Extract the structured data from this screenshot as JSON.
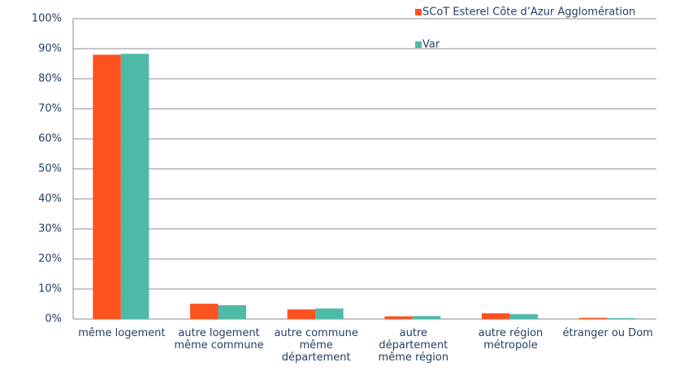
{
  "chart_data": {
    "type": "bar",
    "categories": [
      "même logement",
      "autre logement même commune",
      "autre commune même département",
      "autre département même région",
      "autre région métropole",
      "étranger ou Dom"
    ],
    "series": [
      {
        "name": "SCoT Esterel Côte d’Azur Agglomération",
        "color": "#fc5220",
        "values": [
          88,
          5.1,
          3.2,
          0.9,
          1.9,
          0.4
        ]
      },
      {
        "name": "Var",
        "color": "#4fbaa8",
        "values": [
          88.3,
          4.6,
          3.5,
          1.0,
          1.6,
          0.3
        ]
      }
    ],
    "ylim": [
      0,
      100
    ],
    "yticks": [
      {
        "value": 0,
        "label": "0%"
      },
      {
        "value": 10,
        "label": "10%"
      },
      {
        "value": 20,
        "label": "20%"
      },
      {
        "value": 30,
        "label": "30%"
      },
      {
        "value": 40,
        "label": "40%"
      },
      {
        "value": 50,
        "label": "50%"
      },
      {
        "value": 60,
        "label": "60%"
      },
      {
        "value": 70,
        "label": "70%"
      },
      {
        "value": 80,
        "label": "80%"
      },
      {
        "value": 90,
        "label": "90%"
      },
      {
        "value": 100,
        "label": "100%"
      }
    ],
    "grid": true
  }
}
